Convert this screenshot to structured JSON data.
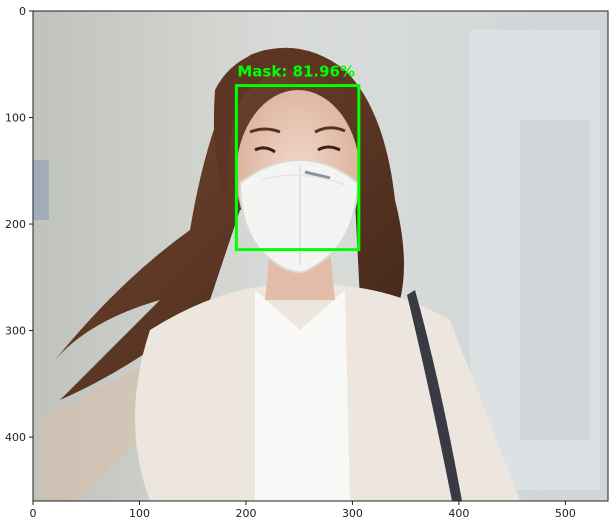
{
  "chart_data": {
    "type": "image",
    "title": "",
    "xlabel": "",
    "ylabel": "",
    "xlim": [
      0,
      540
    ],
    "ylim": [
      460,
      0
    ],
    "x_ticks": [
      0,
      100,
      200,
      300,
      400,
      500
    ],
    "y_ticks": [
      0,
      100,
      200,
      300,
      400
    ],
    "grid": false,
    "image_description": "photo of a woman with long brown hair wearing a white face mask and a white blazer",
    "detections": [
      {
        "label": "Mask: 81.96%",
        "x_min": 191,
        "y_min": 70,
        "x_max": 306,
        "y_max": 224,
        "color": "#00ff00"
      }
    ]
  },
  "colors": {
    "axes": "#222222",
    "box": "#00ff00",
    "background": "#ffffff"
  }
}
